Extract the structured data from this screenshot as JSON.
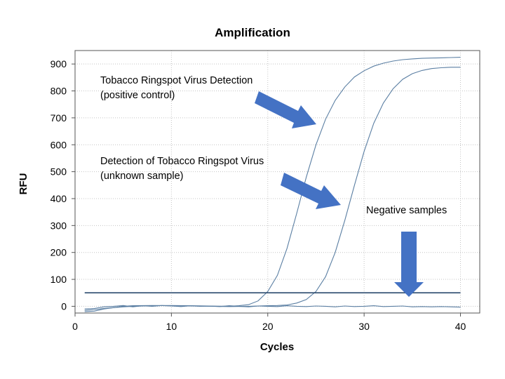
{
  "chart_data": {
    "type": "line",
    "title": "Amplification",
    "xlabel": "Cycles",
    "ylabel": "RFU",
    "xlim": [
      0,
      42
    ],
    "ylim": [
      -25,
      950
    ],
    "xticks": [
      0,
      10,
      20,
      30,
      40
    ],
    "yticks": [
      0,
      100,
      200,
      300,
      400,
      500,
      600,
      700,
      800,
      900
    ],
    "grid": true,
    "series": [
      {
        "name": "Tobacco Ringspot Virus Detection (positive control)",
        "color": "#5b7fa3",
        "x": [
          1,
          2,
          3,
          4,
          5,
          6,
          8,
          10,
          12,
          14,
          16,
          17,
          18,
          19,
          20,
          21,
          22,
          23,
          24,
          25,
          26,
          27,
          28,
          29,
          30,
          31,
          32,
          33,
          34,
          35,
          36,
          37,
          38,
          39,
          40
        ],
        "y": [
          -15,
          -12,
          -8,
          -5,
          -2,
          0,
          2,
          3,
          2,
          1,
          0,
          2,
          6,
          20,
          55,
          115,
          215,
          345,
          480,
          600,
          695,
          765,
          815,
          852,
          875,
          892,
          903,
          911,
          916,
          919,
          921,
          922,
          923,
          924,
          925
        ]
      },
      {
        "name": "Detection of Tobacco Ringspot Virus (unknown sample)",
        "color": "#5b7fa3",
        "x": [
          1,
          2,
          3,
          4,
          5,
          6,
          8,
          10,
          12,
          14,
          16,
          18,
          20,
          21,
          22,
          23,
          24,
          25,
          26,
          27,
          28,
          29,
          30,
          31,
          32,
          33,
          34,
          35,
          36,
          37,
          38,
          39,
          40
        ],
        "y": [
          -20,
          -18,
          -10,
          -5,
          0,
          2,
          3,
          2,
          1,
          0,
          -1,
          0,
          2,
          3,
          5,
          12,
          25,
          55,
          110,
          200,
          320,
          450,
          575,
          680,
          755,
          808,
          843,
          864,
          876,
          883,
          886,
          888,
          888
        ]
      },
      {
        "name": "Negative samples",
        "color": "#5b7fa3",
        "x": [
          1,
          2,
          3,
          4,
          5,
          6,
          7,
          8,
          9,
          10,
          11,
          12,
          13,
          14,
          15,
          16,
          17,
          18,
          19,
          20,
          21,
          22,
          23,
          24,
          25,
          26,
          27,
          28,
          29,
          30,
          31,
          32,
          33,
          34,
          35,
          36,
          37,
          38,
          39,
          40
        ],
        "y": [
          -10,
          -8,
          -2,
          0,
          3,
          -2,
          2,
          0,
          3,
          1,
          -1,
          2,
          0,
          1,
          -1,
          2,
          0,
          -2,
          1,
          0,
          -1,
          2,
          0,
          -1,
          1,
          0,
          -2,
          1,
          -1,
          0,
          2,
          -1,
          0,
          1,
          -2,
          -1,
          -2,
          -1,
          -2,
          -3
        ]
      }
    ],
    "threshold": {
      "y": 50,
      "color": "#2c4b6e"
    },
    "annotations": [
      {
        "lines": [
          "Tobacco Ringspot Virus Detection",
          "(positive control)"
        ]
      },
      {
        "lines": [
          "Detection of Tobacco Ringspot Virus",
          "(unknown sample)"
        ]
      },
      {
        "lines": [
          "Negative samples"
        ]
      }
    ],
    "arrow_color": "#4472c4"
  }
}
